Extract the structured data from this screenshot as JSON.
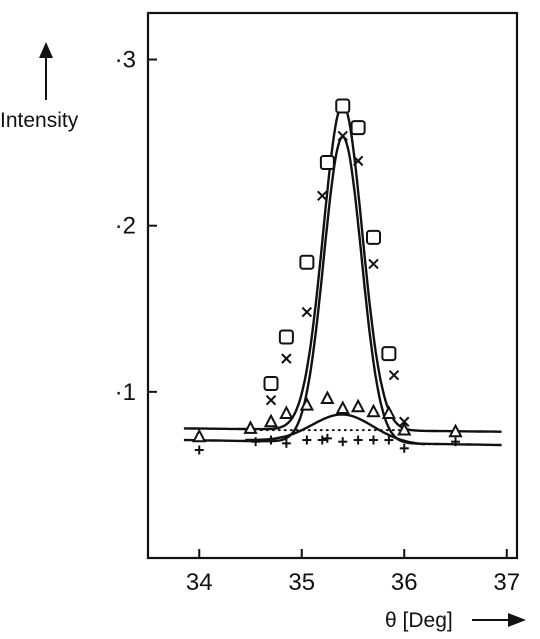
{
  "chart_data": {
    "type": "scatter",
    "title": "",
    "xlabel": "θ [Deg]",
    "ylabel": "Intensity",
    "xlim": [
      33.5,
      37.1
    ],
    "ylim": [
      0.0,
      0.328
    ],
    "x_ticks": [
      34,
      35,
      36,
      37
    ],
    "x_tick_labels": [
      "34",
      "35",
      "36",
      "37"
    ],
    "y_ticks": [
      0.1,
      0.2,
      0.3
    ],
    "y_tick_labels": [
      "·1",
      "·2",
      "·3"
    ],
    "grid": false,
    "legend": "none",
    "series": [
      {
        "marker": "square",
        "points": [
          [
            34.7,
            0.105
          ],
          [
            34.85,
            0.133
          ],
          [
            35.05,
            0.178
          ],
          [
            35.25,
            0.238
          ],
          [
            35.4,
            0.272
          ],
          [
            35.55,
            0.259
          ],
          [
            35.7,
            0.193
          ],
          [
            35.85,
            0.123
          ]
        ]
      },
      {
        "marker": "x",
        "points": [
          [
            34.7,
            0.095
          ],
          [
            34.85,
            0.12
          ],
          [
            35.05,
            0.148
          ],
          [
            35.2,
            0.218
          ],
          [
            35.4,
            0.254
          ],
          [
            35.55,
            0.239
          ],
          [
            35.7,
            0.177
          ],
          [
            35.9,
            0.11
          ],
          [
            36.0,
            0.082
          ]
        ]
      },
      {
        "marker": "triangle",
        "points": [
          [
            34.0,
            0.073
          ],
          [
            34.5,
            0.078
          ],
          [
            34.7,
            0.082
          ],
          [
            34.85,
            0.087
          ],
          [
            35.05,
            0.092
          ],
          [
            35.25,
            0.096
          ],
          [
            35.4,
            0.09
          ],
          [
            35.55,
            0.091
          ],
          [
            35.7,
            0.088
          ],
          [
            35.85,
            0.087
          ],
          [
            36.0,
            0.077
          ],
          [
            36.5,
            0.076
          ]
        ]
      },
      {
        "marker": "plus",
        "points": [
          [
            34.0,
            0.065
          ],
          [
            34.55,
            0.07
          ],
          [
            34.7,
            0.071
          ],
          [
            34.85,
            0.069
          ],
          [
            35.05,
            0.071
          ],
          [
            35.2,
            0.071
          ],
          [
            35.25,
            0.072
          ],
          [
            35.4,
            0.07
          ],
          [
            35.55,
            0.071
          ],
          [
            35.7,
            0.071
          ],
          [
            35.85,
            0.071
          ],
          [
            36.0,
            0.066
          ],
          [
            36.5,
            0.07
          ]
        ]
      }
    ],
    "fitted_curves": [
      {
        "style": "solid",
        "baseline": [
          0.078,
          0.076
        ],
        "peak_center": 35.4,
        "peak_height": 0.196,
        "peak_width": 0.27
      },
      {
        "style": "solid",
        "baseline": [
          0.071,
          0.068
        ],
        "peak_center": 35.4,
        "peak_height": 0.184,
        "peak_width": 0.26
      },
      {
        "style": "solid",
        "baseline": [
          0.071,
          0.068
        ],
        "peak_center": 35.4,
        "peak_height": 0.017,
        "peak_width": 0.42,
        "x_range": [
          34.45,
          36.2
        ]
      },
      {
        "style": "dotted",
        "baseline": [
          0.077,
          0.077
        ],
        "x_range": [
          34.6,
          36.1
        ]
      }
    ]
  }
}
